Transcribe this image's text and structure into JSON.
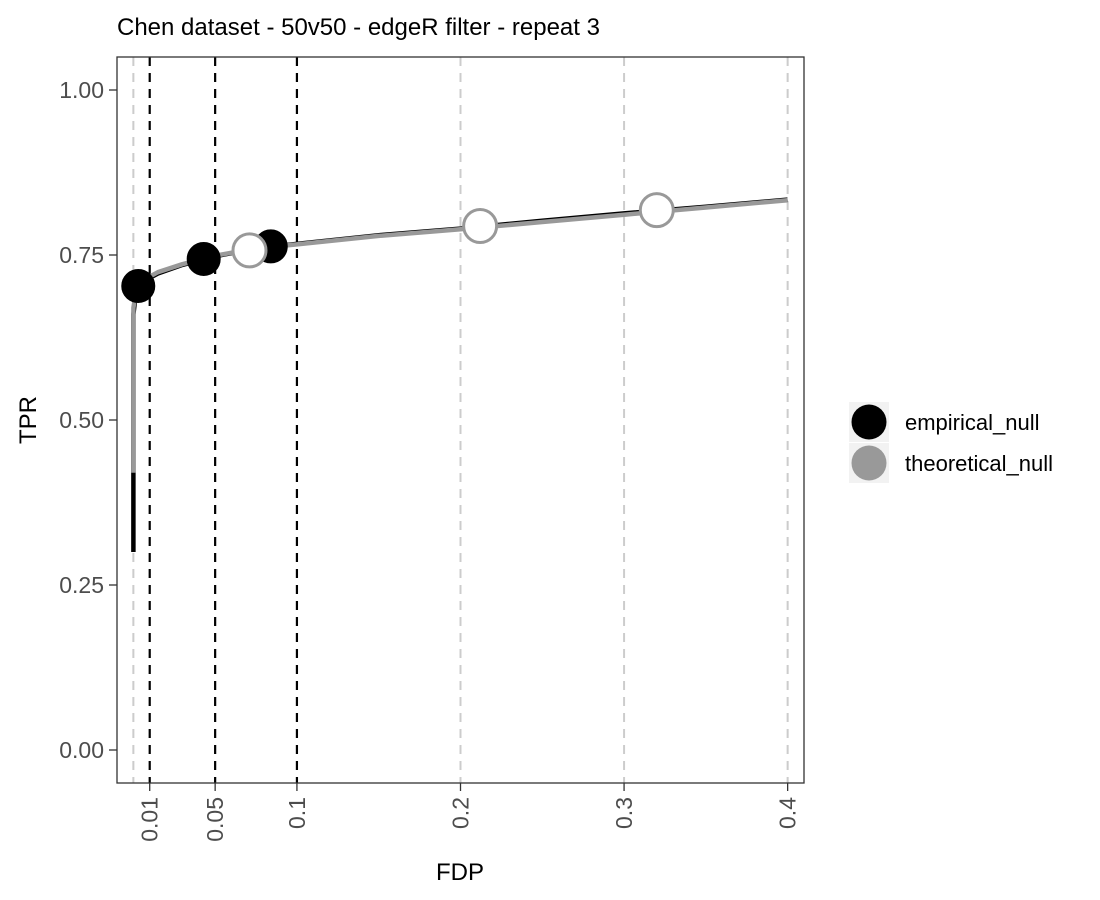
{
  "chart_data": {
    "type": "line",
    "title": "Chen dataset - 50v50 - edgeR filter - repeat 3",
    "xlabel": "FDP",
    "ylabel": "TPR",
    "xlim": [
      -0.01,
      0.41
    ],
    "ylim": [
      -0.05,
      1.05
    ],
    "x_ticks": [
      0.01,
      0.05,
      0.1,
      0.2,
      0.3,
      0.4
    ],
    "x_tick_labels": [
      "0.01",
      "0.05",
      "0.1",
      "0.2",
      "0.3",
      "0.4"
    ],
    "y_ticks": [
      0,
      0.25,
      0.5,
      0.75,
      1
    ],
    "y_tick_labels": [
      "0.00",
      "0.25",
      "0.50",
      "0.75",
      "1.00"
    ],
    "grid": false,
    "reference_lines": {
      "fdr_thresholds": [
        0.01,
        0.05,
        0.1
      ],
      "fdr_threshold_color": "#000000",
      "x_tick_lines": [
        0,
        0.2,
        0.3,
        0.4
      ],
      "x_tick_line_color": "#cccccc"
    },
    "legend": {
      "position": "right",
      "entries": [
        "empirical_null",
        "theoretical_null"
      ]
    },
    "series": [
      {
        "name": "empirical_null",
        "color": "#000000",
        "curve": [
          [
            0.0,
            0.3
          ],
          [
            0.0,
            0.42
          ],
          [
            0.0,
            0.66
          ],
          [
            0.002,
            0.7
          ],
          [
            0.006,
            0.71
          ],
          [
            0.015,
            0.722
          ],
          [
            0.03,
            0.735
          ],
          [
            0.05,
            0.748
          ],
          [
            0.075,
            0.76
          ],
          [
            0.1,
            0.767
          ],
          [
            0.15,
            0.78
          ],
          [
            0.2,
            0.79
          ],
          [
            0.25,
            0.802
          ],
          [
            0.3,
            0.813
          ],
          [
            0.35,
            0.823
          ],
          [
            0.4,
            0.834
          ]
        ],
        "points": [
          {
            "fdp": 0.003,
            "tpr": 0.703
          },
          {
            "fdp": 0.043,
            "tpr": 0.744
          },
          {
            "fdp": 0.084,
            "tpr": 0.763
          }
        ]
      },
      {
        "name": "theoretical_null",
        "color": "#999999",
        "curve": [
          [
            0.0,
            0.42
          ],
          [
            0.0,
            0.6
          ],
          [
            0.0,
            0.67
          ],
          [
            0.002,
            0.7
          ],
          [
            0.006,
            0.712
          ],
          [
            0.015,
            0.724
          ],
          [
            0.03,
            0.736
          ],
          [
            0.05,
            0.749
          ],
          [
            0.075,
            0.76
          ],
          [
            0.1,
            0.766
          ],
          [
            0.15,
            0.779
          ],
          [
            0.2,
            0.789
          ],
          [
            0.25,
            0.8
          ],
          [
            0.3,
            0.811
          ],
          [
            0.35,
            0.822
          ],
          [
            0.4,
            0.833
          ]
        ],
        "points": [
          {
            "fdp": 0.071,
            "tpr": 0.757
          },
          {
            "fdp": 0.212,
            "tpr": 0.794
          },
          {
            "fdp": 0.32,
            "tpr": 0.818
          }
        ]
      }
    ]
  }
}
